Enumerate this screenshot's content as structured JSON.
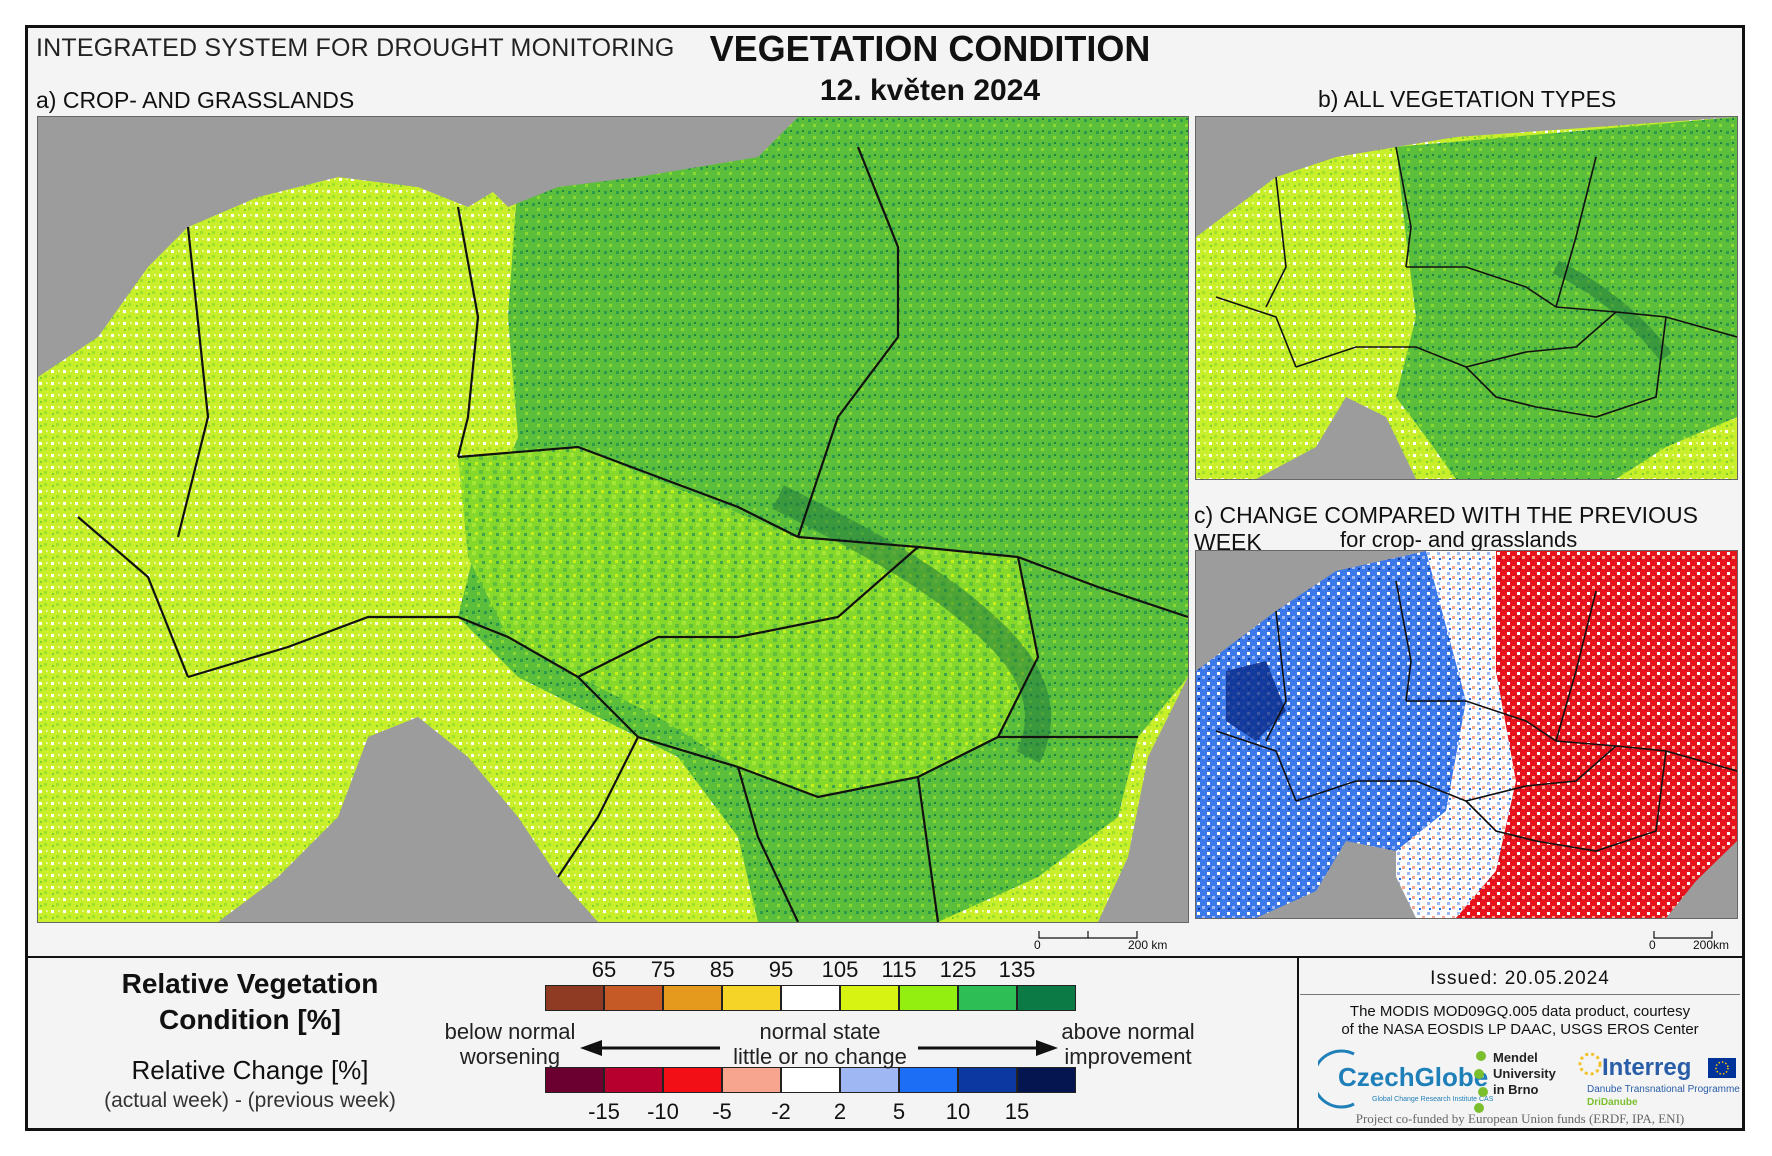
{
  "header": {
    "system_title": "INTEGRATED SYSTEM FOR DROUGHT MONITORING",
    "main_title": "VEGETATION CONDITION",
    "date": "12. květen 2024"
  },
  "panels": {
    "a_label": "a) CROP- AND GRASSLANDS",
    "b_label": "b) ALL VEGETATION TYPES",
    "c_label": "c) CHANGE COMPARED WITH THE PREVIOUS WEEK",
    "c_sublabel": "for crop- and grasslands"
  },
  "scalebars": {
    "a_zero": "0",
    "a_end": "200 km",
    "c_zero": "0",
    "c_end": "200km"
  },
  "legend": {
    "title_line1": "Relative Vegetation",
    "title_line2": "Condition [%]",
    "change_title": "Relative Change [%]",
    "change_note": "(actual week) - (previous week)",
    "condition_ticks": [
      "65",
      "75",
      "85",
      "95",
      "105",
      "115",
      "125",
      "135"
    ],
    "condition_colors": [
      "#8f3b24",
      "#c65a26",
      "#e59a1e",
      "#f5d327",
      "#ffffff",
      "#d7f311",
      "#93ef10",
      "#2dbf55",
      "#0b7a44"
    ],
    "change_ticks": [
      "-15",
      "-10",
      "-5",
      "-2",
      "2",
      "5",
      "10",
      "15"
    ],
    "change_colors": [
      "#6b0030",
      "#b8002e",
      "#f20f16",
      "#f7a58f",
      "#ffffff",
      "#9fb7f2",
      "#1c6ef5",
      "#0c38a1",
      "#05154f"
    ],
    "left_desc_1": "below normal",
    "left_desc_2": "worsening",
    "center_desc_1": "normal state",
    "center_desc_2": "little or no change",
    "right_desc_1": "above normal",
    "right_desc_2": "improvement"
  },
  "credits": {
    "issued": "Issued: 20.05.2024",
    "source_line1": "The MODIS MOD09GQ.005 data product, courtesy",
    "source_line2": "of the NASA EOSDIS LP DAAC, USGS EROS Center",
    "czechglobe": "CzechGlobe",
    "czechglobe_sub": "Global Change Research Institute CAS",
    "mendel_1": "Mendel",
    "mendel_2": "University",
    "mendel_3": "in Brno",
    "interreg": "Interreg",
    "interreg_sub": "Danube Transnational Programme",
    "interreg_sub2": "DriDanube",
    "funded": "Project co-funded by European Union funds (ERDF, IPA, ENI)"
  },
  "colors": {
    "land_gray": "#9c9c9c",
    "border_black": "#111111"
  }
}
